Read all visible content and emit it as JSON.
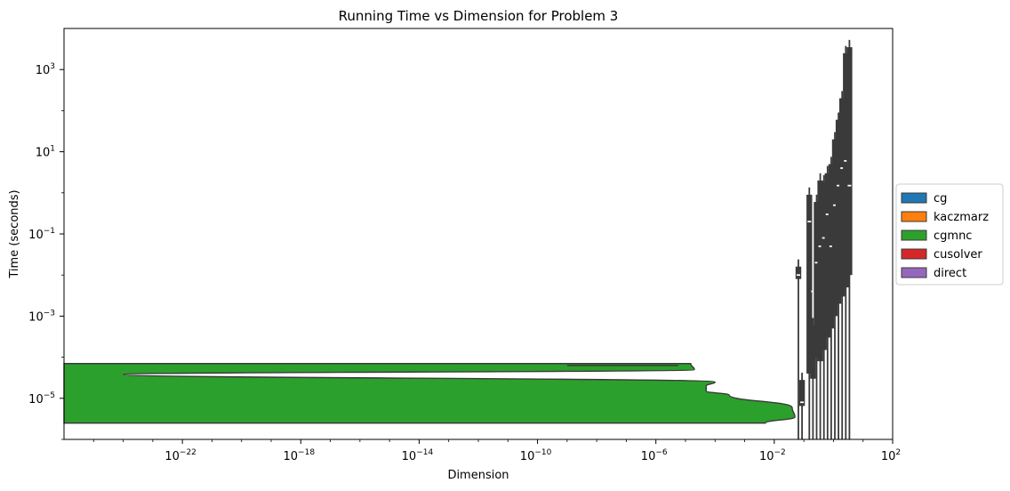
{
  "chart_data": {
    "type": "violin",
    "title": "Running Time vs Dimension for Problem 3",
    "xlabel": "Dimension",
    "ylabel": "Time (seconds)",
    "xscale": "log",
    "yscale": "log",
    "xlim": [
      1e-26,
      100.0
    ],
    "ylim": [
      1e-06,
      10000.0
    ],
    "x_ticks": [
      {
        "exp": "−22",
        "value": 1e-22
      },
      {
        "exp": "−18",
        "value": 1e-18
      },
      {
        "exp": "−14",
        "value": 1e-14
      },
      {
        "exp": "−10",
        "value": 1e-10
      },
      {
        "exp": "−6",
        "value": 1e-06
      },
      {
        "exp": "−2",
        "value": 0.01
      },
      {
        "exp": "2",
        "value": 100.0
      }
    ],
    "y_ticks": [
      {
        "exp": "−5",
        "value": 1e-05
      },
      {
        "exp": "−3",
        "value": 0.001
      },
      {
        "exp": "−1",
        "value": 0.1
      },
      {
        "exp": "1",
        "value": 10.0
      },
      {
        "exp": "3",
        "value": 1000.0
      }
    ],
    "legend": {
      "placement": "outside-right",
      "entries": [
        {
          "name": "cg",
          "color": "#1f77b4"
        },
        {
          "name": "kaczmarz",
          "color": "#ff7f0e"
        },
        {
          "name": "cgmnc",
          "color": "#2ca02c"
        },
        {
          "name": "cusolver",
          "color": "#d62728"
        },
        {
          "name": "direct",
          "color": "#9467bd"
        }
      ]
    },
    "large_violin": {
      "series": "cgmnc",
      "color": "#2ca02c",
      "y_range": [
        2.5e-06,
        7e-05
      ],
      "profile": [
        [
          2.5e-06,
          0.005
        ],
        [
          3.5e-06,
          0.05
        ],
        [
          6e-06,
          0.04
        ],
        [
          1.2e-05,
          0.0003
        ],
        [
          1.5e-05,
          5e-05
        ],
        [
          2e-05,
          5e-05
        ],
        [
          2.5e-05,
          0.0001
        ],
        [
          3.8e-05,
          1e-24
        ],
        [
          5e-05,
          2e-05
        ],
        [
          7e-05,
          1.5e-05
        ]
      ],
      "median_line": [
        1e-09,
        6.3e-05
      ]
    },
    "small_violins": [
      {
        "x": 1.5,
        "y_low": 0.008,
        "y_high": 0.016,
        "median": 0.01
      },
      {
        "x": 2.0,
        "y_low": 6.5e-06,
        "y_high": 2.8e-05,
        "median": 8e-06
      },
      {
        "x": 3.0,
        "y_low": 4e-05,
        "y_high": 0.9,
        "median": 0.2
      },
      {
        "x": 3.5,
        "y_low": 3e-05,
        "y_high": 0.0006,
        "median": 0.004
      },
      {
        "x": 4.0,
        "y_low": 0.0001,
        "y_high": 0.6,
        "median": 0.02
      },
      {
        "x": 4.5,
        "y_low": 8e-05,
        "y_high": 2.0,
        "median": 0.05
      },
      {
        "x": 5.0,
        "y_low": 0.00015,
        "y_high": 1.8,
        "median": 0.08
      },
      {
        "x": 5.5,
        "y_low": 0.0003,
        "y_high": 3.0,
        "median": 0.3
      },
      {
        "x": 6.0,
        "y_low": 0.0005,
        "y_high": 5.0,
        "median": 0.05
      },
      {
        "x": 6.5,
        "y_low": 0.001,
        "y_high": 20,
        "median": 0.5
      },
      {
        "x": 7.0,
        "y_low": 0.002,
        "y_high": 60,
        "median": 1.5
      },
      {
        "x": 7.5,
        "y_low": 0.003,
        "y_high": 200,
        "median": 4.0
      },
      {
        "x": 8.0,
        "y_low": 0.005,
        "y_high": 2500,
        "median": 6.0
      },
      {
        "x": 8.5,
        "y_low": 0.01,
        "y_high": 3500,
        "median": 1.5
      }
    ]
  }
}
